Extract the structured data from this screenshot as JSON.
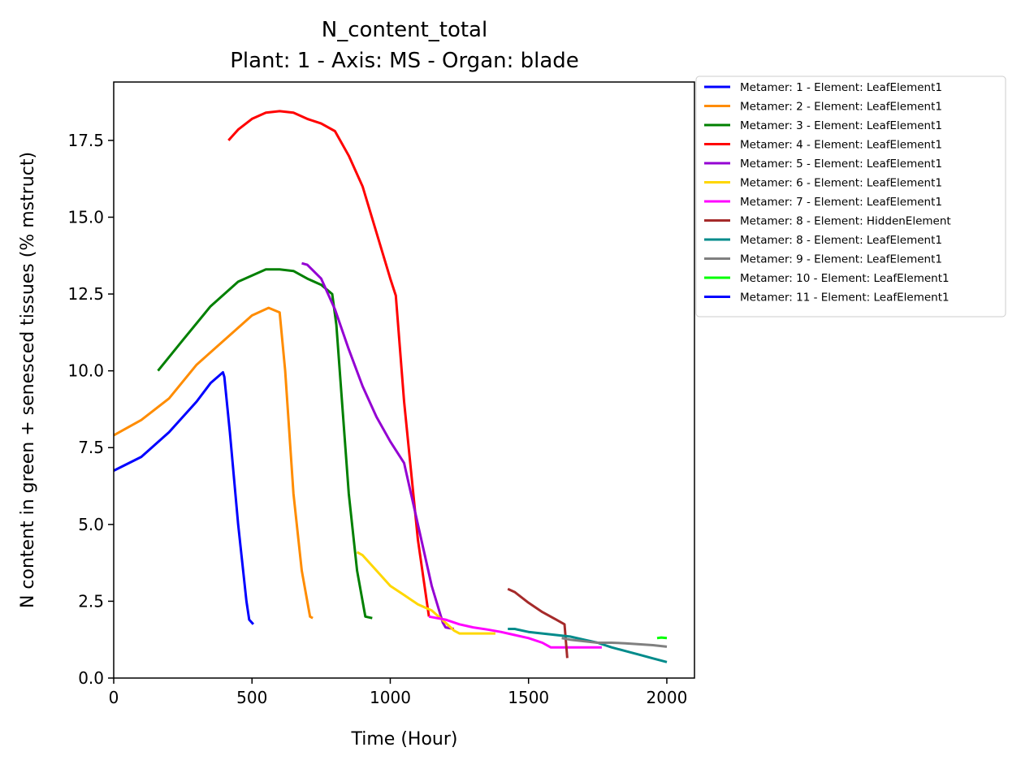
{
  "chart_data": {
    "type": "line",
    "title": "N_content_total",
    "subtitle": "Plant: 1 - Axis: MS - Organ: blade",
    "xlabel": "Time (Hour)",
    "ylabel": "N content in green + senesced tissues (% mstruct)",
    "xlim": [
      0,
      2100
    ],
    "ylim": [
      0,
      19.4
    ],
    "xticks": [
      0,
      500,
      1000,
      1500,
      2000
    ],
    "xtick_labels": [
      "0",
      "500",
      "1000",
      "1500",
      "2000"
    ],
    "yticks": [
      0,
      2.5,
      5,
      7.5,
      10,
      12.5,
      15,
      17.5
    ],
    "ytick_labels": [
      "0.0",
      "2.5",
      "5.0",
      "7.5",
      "10.0",
      "12.5",
      "15.0",
      "17.5"
    ],
    "grid": false,
    "legend_position": "outside-right-top",
    "series": [
      {
        "name": "Metamer: 1 - Element: LeafElement1",
        "color": "#0000ff",
        "x": [
          0,
          100,
          200,
          300,
          350,
          395,
          400,
          420,
          450,
          480,
          490,
          505
        ],
        "y": [
          6.75,
          7.2,
          8.0,
          9.0,
          9.6,
          9.95,
          9.8,
          8.0,
          5.0,
          2.5,
          1.9,
          1.75
        ]
      },
      {
        "name": "Metamer: 2 - Element: LeafElement1",
        "color": "#ff8c00",
        "x": [
          0,
          100,
          200,
          300,
          400,
          500,
          560,
          600,
          620,
          650,
          680,
          710,
          720
        ],
        "y": [
          7.9,
          8.4,
          9.1,
          10.2,
          11.0,
          11.8,
          12.05,
          11.9,
          10.0,
          6.0,
          3.5,
          2.0,
          1.95
        ]
      },
      {
        "name": "Metamer: 3 - Element: LeafElement1",
        "color": "#008000",
        "x": [
          160,
          250,
          350,
          450,
          550,
          600,
          650,
          700,
          750,
          790,
          805,
          850,
          880,
          910,
          935
        ],
        "y": [
          10.0,
          11.0,
          12.1,
          12.9,
          13.3,
          13.3,
          13.25,
          13.0,
          12.8,
          12.5,
          11.5,
          6.0,
          3.5,
          2.0,
          1.95
        ]
      },
      {
        "name": "Metamer: 4 - Element: LeafElement1",
        "color": "#ff0000",
        "x": [
          415,
          450,
          500,
          550,
          600,
          650,
          700,
          750,
          800,
          850,
          900,
          950,
          1000,
          1020,
          1050,
          1100,
          1140
        ],
        "y": [
          17.5,
          17.85,
          18.2,
          18.4,
          18.45,
          18.4,
          18.2,
          18.05,
          17.8,
          17.0,
          16.0,
          14.5,
          13.0,
          12.45,
          9.0,
          4.5,
          2.0
        ]
      },
      {
        "name": "Metamer: 5 - Element: LeafElement1",
        "color": "#9400d3",
        "x": [
          680,
          700,
          750,
          800,
          850,
          900,
          950,
          1000,
          1050,
          1100,
          1150,
          1190,
          1200,
          1230
        ],
        "y": [
          13.5,
          13.45,
          13.0,
          12.0,
          10.7,
          9.5,
          8.5,
          7.7,
          7.0,
          5.0,
          3.0,
          1.8,
          1.65,
          1.6
        ]
      },
      {
        "name": "Metamer: 6 - Element: LeafElement1",
        "color": "#ffd700",
        "x": [
          880,
          900,
          950,
          1000,
          1050,
          1100,
          1150,
          1200,
          1230,
          1250,
          1300,
          1380
        ],
        "y": [
          4.1,
          4.0,
          3.5,
          3.0,
          2.7,
          2.4,
          2.2,
          1.8,
          1.55,
          1.45,
          1.45,
          1.45
        ]
      },
      {
        "name": "Metamer: 7 - Element: LeafElement1",
        "color": "#ff00ff",
        "x": [
          1140,
          1200,
          1250,
          1300,
          1350,
          1400,
          1450,
          1500,
          1550,
          1580,
          1620,
          1700,
          1765
        ],
        "y": [
          2.0,
          1.9,
          1.75,
          1.65,
          1.58,
          1.5,
          1.4,
          1.3,
          1.15,
          1.0,
          1.0,
          1.0,
          1.0
        ]
      },
      {
        "name": "Metamer: 8 - Element: HiddenElement",
        "color": "#a52a2a",
        "x": [
          1425,
          1450,
          1500,
          1550,
          1600,
          1630,
          1635,
          1640
        ],
        "y": [
          2.9,
          2.8,
          2.45,
          2.15,
          1.9,
          1.75,
          1.2,
          0.65
        ]
      },
      {
        "name": "Metamer: 8 - Element: LeafElement1",
        "color": "#008b8b",
        "x": [
          1425,
          1450,
          1500,
          1550,
          1600,
          1650,
          1700,
          1750,
          1800,
          1850,
          1900,
          1950,
          2000
        ],
        "y": [
          1.6,
          1.6,
          1.5,
          1.45,
          1.4,
          1.35,
          1.25,
          1.15,
          1.0,
          0.88,
          0.76,
          0.64,
          0.52
        ]
      },
      {
        "name": "Metamer: 9 - Element: LeafElement1",
        "color": "#808080",
        "x": [
          1620,
          1650,
          1700,
          1750,
          1800,
          1850,
          1900,
          1950,
          2000
        ],
        "y": [
          1.3,
          1.25,
          1.2,
          1.15,
          1.15,
          1.13,
          1.1,
          1.07,
          1.02
        ]
      },
      {
        "name": "Metamer: 10 - Element: LeafElement1",
        "color": "#00ff00",
        "x": [
          1965,
          1980,
          2000
        ],
        "y": [
          1.3,
          1.32,
          1.3
        ]
      },
      {
        "name": "Metamer: 11 - Element: LeafElement1",
        "color": "#0000ff",
        "x": [],
        "y": []
      }
    ]
  }
}
